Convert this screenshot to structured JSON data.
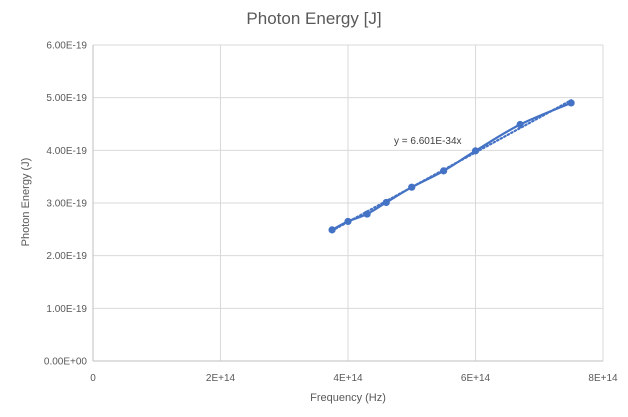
{
  "chart_data": {
    "type": "scatter",
    "title": "Photon Energy [J]",
    "xlabel": "Frequency (Hz)",
    "ylabel": "Photon Energy (J)",
    "xlim": [
      0,
      800000000000000.0
    ],
    "ylim": [
      0,
      6e-19
    ],
    "x_ticks": [
      0,
      200000000000000.0,
      400000000000000.0,
      600000000000000.0,
      800000000000000.0
    ],
    "x_tick_labels": [
      "0",
      "2E+14",
      "4E+14",
      "6E+14",
      "8E+14"
    ],
    "y_ticks": [
      0,
      1e-19,
      2e-19,
      3e-19,
      4e-19,
      5e-19,
      6e-19
    ],
    "y_tick_labels": [
      "0.00E+00",
      "1.00E-19",
      "2.00E-19",
      "3.00E-19",
      "4.00E-19",
      "5.00E-19",
      "6.00E-19"
    ],
    "grid": true,
    "series": [
      {
        "style": "markers-with-smooth-line",
        "color": "#4472c4",
        "x": [
          375000000000000.0,
          400000000000000.0,
          430000000000000.0,
          460000000000000.0,
          500000000000000.0,
          550000000000000.0,
          600000000000000.0,
          670000000000000.0,
          750000000000000.0
        ],
        "y": [
          2.49e-19,
          2.65e-19,
          2.79e-19,
          3.01e-19,
          3.3e-19,
          3.61e-19,
          3.99e-19,
          4.49e-19,
          4.9e-19
        ]
      }
    ],
    "trendline": {
      "style": "dotted",
      "color": "#4472c4",
      "slope": 6.601e-34,
      "x_range": [
        375000000000000.0,
        750000000000000.0
      ],
      "label": "y = 6.601E-34x"
    }
  }
}
